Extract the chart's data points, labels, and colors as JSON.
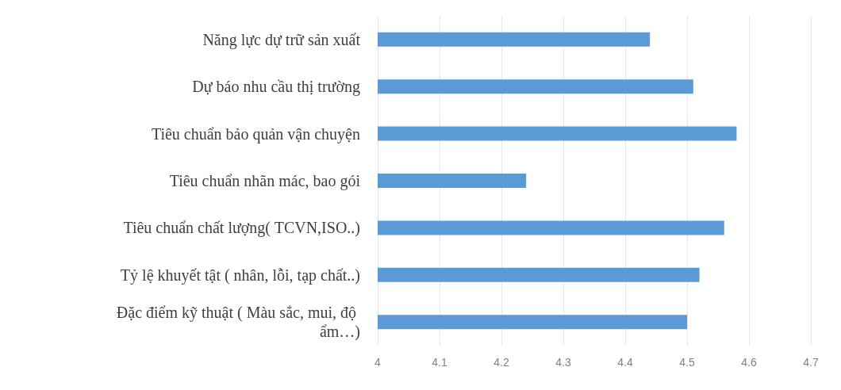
{
  "chart_data": {
    "type": "bar",
    "orientation": "horizontal",
    "categories": [
      "Năng lực dự trữ sản xuất",
      "Dự báo nhu cầu thị trường",
      "Tiêu chuẩn bảo quản vận chuyện",
      "Tiêu chuẩn nhãn mác, bao gói",
      "Tiêu chuẩn chất lượng( TCVN,ISO..)",
      "Tỷ lệ khuyết tật ( nhân, lỗi, tạp chất..)",
      "Đặc điểm kỹ thuật ( Màu sắc, mui, độ ẩm…)"
    ],
    "values": [
      4.44,
      4.51,
      4.58,
      4.24,
      4.56,
      4.52,
      4.5
    ],
    "color": "#5b9bd5",
    "xlim": [
      4,
      4.7
    ],
    "xticks": [
      4,
      4.1,
      4.2,
      4.3,
      4.4,
      4.5,
      4.6,
      4.7
    ],
    "grid": "x"
  }
}
